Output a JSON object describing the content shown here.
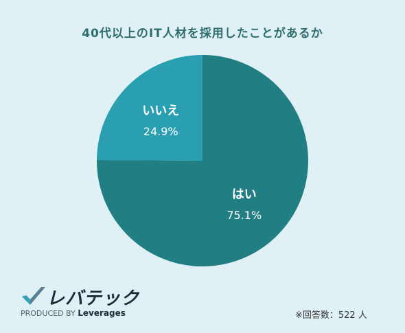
{
  "chart_data": {
    "type": "pie",
    "title": "40代以上のIT人材を採用したことがあるか",
    "slices": [
      {
        "label": "はい",
        "value": 75.1,
        "display": "75.1%",
        "color": "#217e83"
      },
      {
        "label": "いいえ",
        "value": 24.9,
        "display": "24.9%",
        "color": "#2a9fb1"
      }
    ]
  },
  "branding": {
    "logo_text": "レバテック",
    "produced_by": "PRODUCED BY",
    "company": "Leverages"
  },
  "footnote": "※回答数：522 人"
}
